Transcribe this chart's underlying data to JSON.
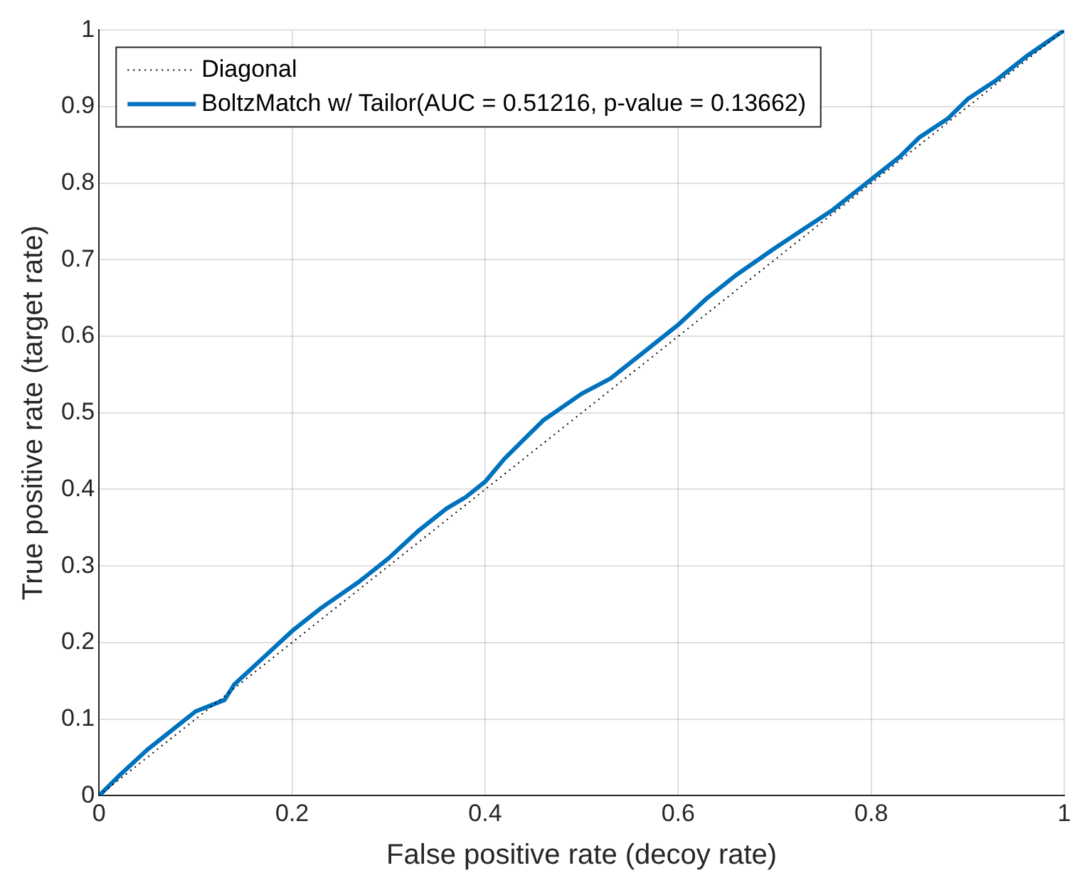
{
  "chart_data": {
    "type": "line",
    "xlabel": "False positive rate (decoy rate)",
    "ylabel": "True positive rate (target rate)",
    "xlim": [
      0,
      1
    ],
    "ylim": [
      0,
      1
    ],
    "xticks": [
      0,
      0.2,
      0.4,
      0.6,
      0.8,
      1
    ],
    "yticks": [
      0,
      0.1,
      0.2,
      0.3,
      0.4,
      0.5,
      0.6,
      0.7,
      0.8,
      0.9,
      1
    ],
    "grid": true,
    "legend": "top left",
    "marker": "none",
    "series": [
      {
        "name": "Diagonal",
        "color": "#000000",
        "line_style": "dotted",
        "x": [
          0,
          1
        ],
        "values": [
          0,
          1
        ]
      },
      {
        "name": "BoltzMatch w/ Tailor(AUC = 0.51216, p-value = 0.13662)",
        "color": "#0072bd",
        "line_style": "solid",
        "x": [
          0,
          0.02,
          0.05,
          0.08,
          0.1,
          0.13,
          0.14,
          0.17,
          0.2,
          0.23,
          0.27,
          0.3,
          0.33,
          0.36,
          0.38,
          0.4,
          0.42,
          0.44,
          0.46,
          0.5,
          0.53,
          0.56,
          0.6,
          0.63,
          0.66,
          0.7,
          0.73,
          0.76,
          0.8,
          0.83,
          0.85,
          0.88,
          0.9,
          0.93,
          0.96,
          1
        ],
        "values": [
          0,
          0.025,
          0.06,
          0.09,
          0.11,
          0.125,
          0.145,
          0.18,
          0.215,
          0.245,
          0.28,
          0.31,
          0.345,
          0.375,
          0.39,
          0.41,
          0.44,
          0.465,
          0.49,
          0.525,
          0.545,
          0.575,
          0.615,
          0.65,
          0.68,
          0.715,
          0.74,
          0.765,
          0.805,
          0.835,
          0.86,
          0.885,
          0.91,
          0.935,
          0.965,
          1
        ]
      }
    ]
  }
}
